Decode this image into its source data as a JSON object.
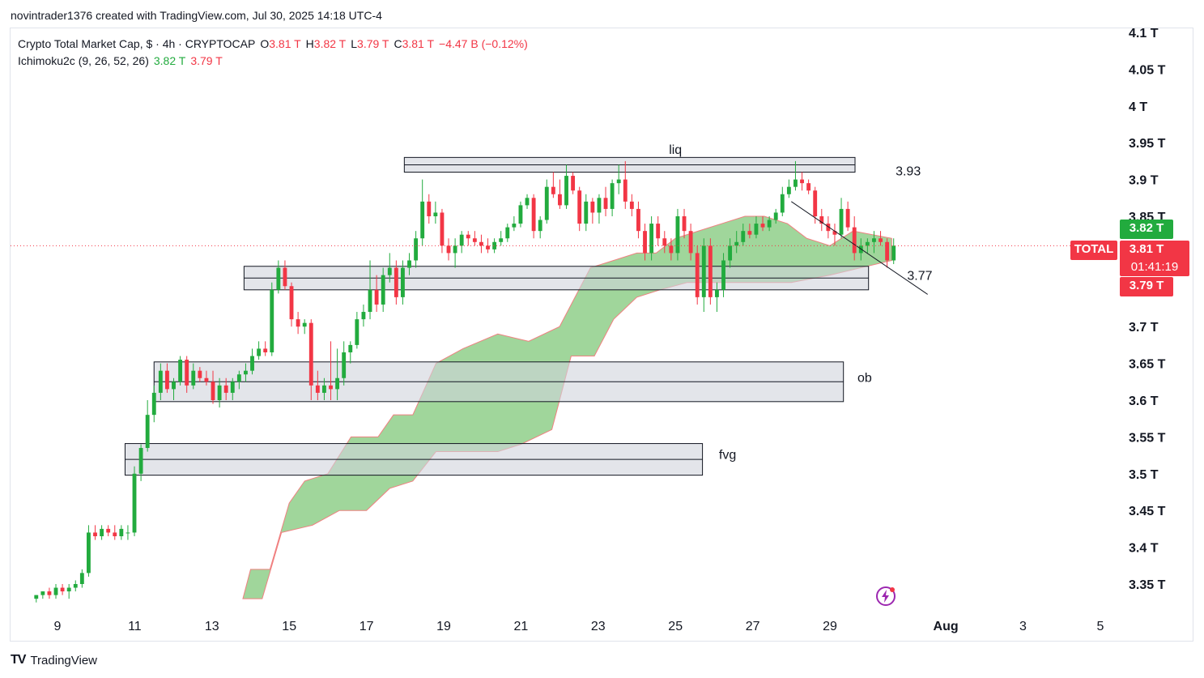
{
  "header": {
    "credit": "novintrader1376 created with TradingView.com, Jul 30, 2025 14:18 UTC-4"
  },
  "legend": {
    "symbol": "Crypto Total Market Cap, $ · 4h · CRYPTOCAP",
    "o_label": "O",
    "o_value": "3.81 T",
    "h_label": "H",
    "h_value": "3.82 T",
    "l_label": "L",
    "l_value": "3.79 T",
    "c_label": "C",
    "c_value": "3.81 T",
    "change": "−4.47 B (−0.12%)",
    "indicator": "Ichimoku2c (9, 26, 52, 26)",
    "ind_value1": "3.82 T",
    "ind_value2": "3.79 T"
  },
  "price_axis": {
    "badge_green": "3.82 T",
    "badge_symbol": "TOTAL",
    "badge_price": "3.81 T",
    "badge_timer": "01:41:19",
    "badge_red": "3.79 T"
  },
  "footer": {
    "logo": "TV",
    "brand": "TradingView"
  },
  "colors": {
    "up": "#089981",
    "down": "#f23645",
    "candle_up": "#22ab3e",
    "candle_down": "#f23645",
    "cloud": "#8fcf8a",
    "cloud_edge": "#f08080",
    "zone_fill": "#d1d4dc",
    "zone_stroke": "#131722",
    "badge_green": "#22ab3e",
    "badge_red": "#f23645"
  },
  "chart_data": {
    "type": "candlestick",
    "title": "Crypto Total Market Cap, $ · 4h · CRYPTOCAP",
    "ylim": [
      3.32,
      4.11
    ],
    "y_ticks": [
      4.1,
      4.05,
      4.0,
      3.95,
      3.9,
      3.85,
      3.7,
      3.65,
      3.6,
      3.55,
      3.5,
      3.45,
      3.4,
      3.35
    ],
    "y_tick_labels": [
      "4.1 T",
      "4.05 T",
      "4 T",
      "3.95 T",
      "3.9 T",
      "3.85 T",
      "3.7 T",
      "3.65 T",
      "3.6 T",
      "3.55 T",
      "3.5 T",
      "3.45 T",
      "3.4 T",
      "3.35 T"
    ],
    "x_range_days": [
      8.0,
      6.1
    ],
    "x_ticks": [
      {
        "day": 9,
        "label": "9"
      },
      {
        "day": 11,
        "label": "11"
      },
      {
        "day": 13,
        "label": "13"
      },
      {
        "day": 15,
        "label": "15"
      },
      {
        "day": 17,
        "label": "17"
      },
      {
        "day": 19,
        "label": "19"
      },
      {
        "day": 21,
        "label": "21"
      },
      {
        "day": 23,
        "label": "23"
      },
      {
        "day": 25,
        "label": "25"
      },
      {
        "day": 27,
        "label": "27"
      },
      {
        "day": 29,
        "label": "29"
      },
      {
        "day": 32,
        "label": "Aug"
      },
      {
        "day": 34,
        "label": "3"
      },
      {
        "day": 36,
        "label": "5"
      }
    ],
    "candles": [
      [
        3.33,
        3.335,
        3.325,
        3.335
      ],
      [
        3.335,
        3.34,
        3.33,
        3.34
      ],
      [
        3.34,
        3.345,
        3.33,
        3.335
      ],
      [
        3.335,
        3.35,
        3.33,
        3.345
      ],
      [
        3.345,
        3.35,
        3.335,
        3.34
      ],
      [
        3.34,
        3.35,
        3.33,
        3.345
      ],
      [
        3.345,
        3.355,
        3.34,
        3.35
      ],
      [
        3.35,
        3.37,
        3.345,
        3.365
      ],
      [
        3.365,
        3.43,
        3.36,
        3.42
      ],
      [
        3.42,
        3.43,
        3.41,
        3.415
      ],
      [
        3.415,
        3.43,
        3.41,
        3.425
      ],
      [
        3.425,
        3.43,
        3.415,
        3.42
      ],
      [
        3.42,
        3.43,
        3.41,
        3.415
      ],
      [
        3.415,
        3.43,
        3.41,
        3.425
      ],
      [
        3.42,
        3.43,
        3.41,
        3.42
      ],
      [
        3.42,
        3.51,
        3.415,
        3.5
      ],
      [
        3.5,
        3.54,
        3.49,
        3.535
      ],
      [
        3.535,
        3.6,
        3.53,
        3.58
      ],
      [
        3.58,
        3.62,
        3.57,
        3.61
      ],
      [
        3.61,
        3.65,
        3.6,
        3.64
      ],
      [
        3.64,
        3.65,
        3.61,
        3.615
      ],
      [
        3.615,
        3.63,
        3.6,
        3.625
      ],
      [
        3.625,
        3.66,
        3.62,
        3.655
      ],
      [
        3.655,
        3.66,
        3.61,
        3.62
      ],
      [
        3.62,
        3.65,
        3.615,
        3.64
      ],
      [
        3.64,
        3.645,
        3.625,
        3.63
      ],
      [
        3.63,
        3.64,
        3.62,
        3.625
      ],
      [
        3.625,
        3.64,
        3.595,
        3.6
      ],
      [
        3.6,
        3.63,
        3.59,
        3.62
      ],
      [
        3.62,
        3.63,
        3.6,
        3.61
      ],
      [
        3.61,
        3.63,
        3.6,
        3.625
      ],
      [
        3.625,
        3.64,
        3.615,
        3.635
      ],
      [
        3.635,
        3.65,
        3.625,
        3.64
      ],
      [
        3.64,
        3.67,
        3.635,
        3.66
      ],
      [
        3.66,
        3.68,
        3.655,
        3.67
      ],
      [
        3.67,
        3.68,
        3.66,
        3.665
      ],
      [
        3.665,
        3.76,
        3.66,
        3.75
      ],
      [
        3.75,
        3.79,
        3.745,
        3.78
      ],
      [
        3.78,
        3.79,
        3.75,
        3.755
      ],
      [
        3.755,
        3.76,
        3.7,
        3.71
      ],
      [
        3.71,
        3.72,
        3.69,
        3.7
      ],
      [
        3.7,
        3.71,
        3.69,
        3.705
      ],
      [
        3.705,
        3.71,
        3.6,
        3.62
      ],
      [
        3.62,
        3.64,
        3.6,
        3.61
      ],
      [
        3.61,
        3.63,
        3.6,
        3.62
      ],
      [
        3.62,
        3.68,
        3.6,
        3.615
      ],
      [
        3.615,
        3.67,
        3.6,
        3.63
      ],
      [
        3.63,
        3.68,
        3.62,
        3.665
      ],
      [
        3.665,
        3.68,
        3.65,
        3.675
      ],
      [
        3.675,
        3.72,
        3.67,
        3.71
      ],
      [
        3.71,
        3.73,
        3.7,
        3.72
      ],
      [
        3.72,
        3.79,
        3.71,
        3.75
      ],
      [
        3.75,
        3.77,
        3.72,
        3.73
      ],
      [
        3.73,
        3.78,
        3.72,
        3.77
      ],
      [
        3.77,
        3.8,
        3.76,
        3.78
      ],
      [
        3.78,
        3.79,
        3.73,
        3.74
      ],
      [
        3.74,
        3.79,
        3.73,
        3.78
      ],
      [
        3.78,
        3.8,
        3.77,
        3.79
      ],
      [
        3.79,
        3.83,
        3.78,
        3.82
      ],
      [
        3.82,
        3.9,
        3.81,
        3.87
      ],
      [
        3.87,
        3.88,
        3.84,
        3.85
      ],
      [
        3.85,
        3.87,
        3.84,
        3.855
      ],
      [
        3.855,
        3.86,
        3.8,
        3.81
      ],
      [
        3.81,
        3.82,
        3.79,
        3.8
      ],
      [
        3.8,
        3.82,
        3.78,
        3.81
      ],
      [
        3.81,
        3.83,
        3.8,
        3.825
      ],
      [
        3.825,
        3.83,
        3.81,
        3.82
      ],
      [
        3.82,
        3.83,
        3.81,
        3.815
      ],
      [
        3.815,
        3.825,
        3.8,
        3.81
      ],
      [
        3.81,
        3.82,
        3.8,
        3.805
      ],
      [
        3.805,
        3.82,
        3.8,
        3.815
      ],
      [
        3.815,
        3.83,
        3.81,
        3.82
      ],
      [
        3.82,
        3.84,
        3.815,
        3.835
      ],
      [
        3.835,
        3.85,
        3.83,
        3.84
      ],
      [
        3.84,
        3.87,
        3.835,
        3.865
      ],
      [
        3.865,
        3.88,
        3.86,
        3.875
      ],
      [
        3.875,
        3.88,
        3.82,
        3.83
      ],
      [
        3.83,
        3.85,
        3.82,
        3.845
      ],
      [
        3.845,
        3.9,
        3.84,
        3.89
      ],
      [
        3.89,
        3.91,
        3.875,
        3.88
      ],
      [
        3.88,
        3.9,
        3.86,
        3.865
      ],
      [
        3.865,
        3.92,
        3.86,
        3.905
      ],
      [
        3.905,
        3.91,
        3.88,
        3.885
      ],
      [
        3.885,
        3.89,
        3.83,
        3.84
      ],
      [
        3.84,
        3.88,
        3.83,
        3.87
      ],
      [
        3.87,
        3.875,
        3.84,
        3.855
      ],
      [
        3.855,
        3.88,
        3.84,
        3.875
      ],
      [
        3.875,
        3.89,
        3.85,
        3.86
      ],
      [
        3.86,
        3.9,
        3.85,
        3.895
      ],
      [
        3.895,
        3.92,
        3.88,
        3.9
      ],
      [
        3.9,
        3.925,
        3.86,
        3.87
      ],
      [
        3.87,
        3.88,
        3.85,
        3.86
      ],
      [
        3.86,
        3.87,
        3.82,
        3.83
      ],
      [
        3.83,
        3.84,
        3.79,
        3.8
      ],
      [
        3.8,
        3.85,
        3.79,
        3.84
      ],
      [
        3.84,
        3.85,
        3.81,
        3.82
      ],
      [
        3.82,
        3.83,
        3.8,
        3.81
      ],
      [
        3.81,
        3.82,
        3.79,
        3.8
      ],
      [
        3.8,
        3.86,
        3.79,
        3.85
      ],
      [
        3.85,
        3.86,
        3.82,
        3.83
      ],
      [
        3.83,
        3.84,
        3.79,
        3.8
      ],
      [
        3.8,
        3.81,
        3.73,
        3.74
      ],
      [
        3.74,
        3.82,
        3.72,
        3.81
      ],
      [
        3.81,
        3.82,
        3.73,
        3.74
      ],
      [
        3.74,
        3.76,
        3.72,
        3.75
      ],
      [
        3.75,
        3.8,
        3.74,
        3.79
      ],
      [
        3.79,
        3.82,
        3.78,
        3.81
      ],
      [
        3.81,
        3.83,
        3.8,
        3.815
      ],
      [
        3.815,
        3.84,
        3.81,
        3.83
      ],
      [
        3.83,
        3.84,
        3.82,
        3.825
      ],
      [
        3.825,
        3.85,
        3.82,
        3.84
      ],
      [
        3.84,
        3.85,
        3.83,
        3.835
      ],
      [
        3.835,
        3.85,
        3.83,
        3.845
      ],
      [
        3.845,
        3.86,
        3.84,
        3.855
      ],
      [
        3.855,
        3.89,
        3.85,
        3.88
      ],
      [
        3.88,
        3.9,
        3.875,
        3.89
      ],
      [
        3.89,
        3.925,
        3.885,
        3.9
      ],
      [
        3.9,
        3.91,
        3.885,
        3.895
      ],
      [
        3.895,
        3.9,
        3.88,
        3.885
      ],
      [
        3.885,
        3.89,
        3.84,
        3.85
      ],
      [
        3.85,
        3.86,
        3.83,
        3.84
      ],
      [
        3.84,
        3.85,
        3.82,
        3.83
      ],
      [
        3.83,
        3.84,
        3.81,
        3.825
      ],
      [
        3.825,
        3.875,
        3.82,
        3.86
      ],
      [
        3.86,
        3.87,
        3.83,
        3.835
      ],
      [
        3.835,
        3.85,
        3.79,
        3.8
      ],
      [
        3.8,
        3.82,
        3.79,
        3.81
      ],
      [
        3.81,
        3.82,
        3.8,
        3.815
      ],
      [
        3.815,
        3.83,
        3.8,
        3.82
      ],
      [
        3.82,
        3.83,
        3.81,
        3.815
      ],
      [
        3.815,
        3.82,
        3.78,
        3.79
      ],
      [
        3.79,
        3.82,
        3.785,
        3.81
      ]
    ],
    "cloud_top": [
      [
        13.8,
        3.33
      ],
      [
        14.0,
        3.37
      ],
      [
        14.5,
        3.37
      ],
      [
        15.0,
        3.46
      ],
      [
        15.4,
        3.49
      ],
      [
        16.0,
        3.5
      ],
      [
        16.6,
        3.55
      ],
      [
        17.3,
        3.55
      ],
      [
        17.7,
        3.58
      ],
      [
        18.2,
        3.58
      ],
      [
        18.8,
        3.65
      ],
      [
        19.5,
        3.67
      ],
      [
        20.4,
        3.69
      ],
      [
        21.2,
        3.68
      ],
      [
        22.0,
        3.7
      ],
      [
        22.8,
        3.78
      ],
      [
        23.4,
        3.79
      ],
      [
        24.0,
        3.8
      ],
      [
        24.5,
        3.8
      ],
      [
        25.0,
        3.82
      ],
      [
        25.6,
        3.83
      ],
      [
        26.2,
        3.84
      ],
      [
        26.8,
        3.85
      ],
      [
        27.3,
        3.85
      ],
      [
        27.9,
        3.84
      ],
      [
        28.4,
        3.82
      ],
      [
        29.0,
        3.81
      ],
      [
        29.6,
        3.83
      ],
      [
        30.6,
        3.82
      ]
    ],
    "cloud_bottom": [
      [
        14.3,
        3.33
      ],
      [
        14.8,
        3.42
      ],
      [
        15.6,
        3.43
      ],
      [
        16.3,
        3.45
      ],
      [
        17.0,
        3.45
      ],
      [
        17.6,
        3.48
      ],
      [
        18.2,
        3.49
      ],
      [
        18.8,
        3.53
      ],
      [
        19.5,
        3.53
      ],
      [
        20.4,
        3.53
      ],
      [
        21.0,
        3.54
      ],
      [
        21.8,
        3.56
      ],
      [
        22.3,
        3.66
      ],
      [
        22.9,
        3.66
      ],
      [
        23.4,
        3.71
      ],
      [
        24.0,
        3.74
      ],
      [
        24.6,
        3.75
      ],
      [
        25.3,
        3.76
      ],
      [
        26.2,
        3.76
      ],
      [
        27.0,
        3.76
      ],
      [
        28.0,
        3.76
      ],
      [
        29.0,
        3.77
      ],
      [
        29.8,
        3.78
      ],
      [
        30.6,
        3.79
      ]
    ],
    "zones": [
      {
        "label": "liq",
        "x0": 17.98,
        "x1": 29.65,
        "y_top": 3.93,
        "y_bottom": 3.91,
        "label_day": 25.0,
        "label_price": 3.935
      },
      {
        "label": "",
        "x0": 13.83,
        "x1": 30.0,
        "y_top": 3.782,
        "y_bottom": 3.75,
        "label_day": 0,
        "label_price": 0
      },
      {
        "label": "ob",
        "x0": 11.5,
        "x1": 29.35,
        "y_top": 3.652,
        "y_bottom": 3.598,
        "label_day": 29.9,
        "label_price": 3.625
      },
      {
        "label": "fvg",
        "x0": 10.75,
        "x1": 25.7,
        "y_top": 3.541,
        "y_bottom": 3.498,
        "label_day": 26.35,
        "label_price": 3.52
      }
    ],
    "level_labels": [
      {
        "text": "3.93",
        "day": 30.7,
        "price": 3.912
      },
      {
        "text": "3.77",
        "day": 31.0,
        "price": 3.77
      }
    ],
    "trendline": [
      [
        28.0,
        3.87
      ],
      [
        30.63,
        3.776
      ]
    ],
    "current_price": 3.81,
    "series": [
      {
        "name": "Crypto Total Market Cap"
      },
      {
        "name": "Ichimoku2c (9, 26, 52, 26)"
      }
    ]
  }
}
